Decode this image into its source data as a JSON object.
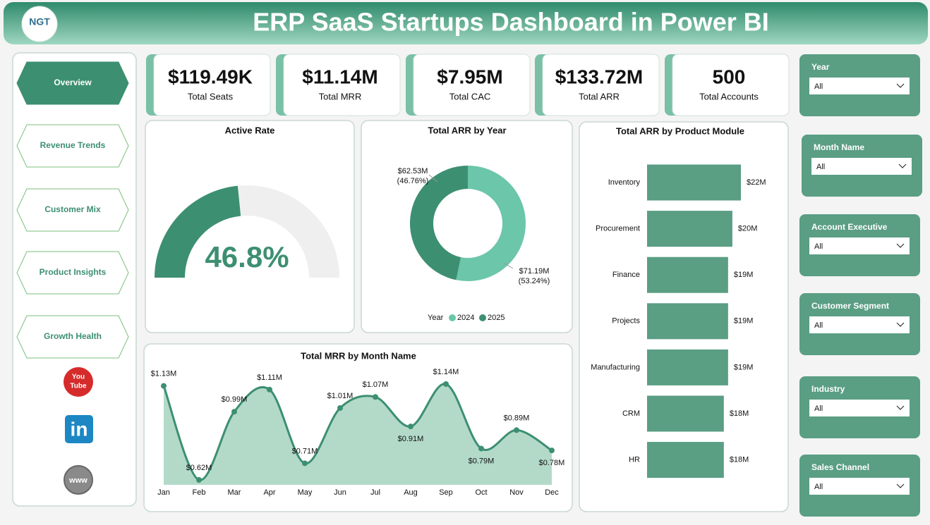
{
  "header": {
    "logo": "NGT",
    "title": "ERP SaaS Startups Dashboard in Power BI"
  },
  "nav": [
    "Overview",
    "Revenue Trends",
    "Customer Mix",
    "Product Insights",
    "Growth Health"
  ],
  "icons": {
    "youtube": [
      "You",
      "Tube"
    ],
    "linkedin": "in",
    "web": "www"
  },
  "kpis": [
    {
      "value": "$119.49K",
      "label": "Total Seats"
    },
    {
      "value": "$11.14M",
      "label": "Total MRR"
    },
    {
      "value": "$7.95M",
      "label": "Total CAC"
    },
    {
      "value": "$133.72M",
      "label": "Total ARR"
    },
    {
      "value": "500",
      "label": "Total Accounts"
    }
  ],
  "chart_data": [
    {
      "type": "gauge",
      "title": "Active Rate",
      "values": [
        46.8
      ],
      "value_labels": [
        "46.8%"
      ],
      "ylim": [
        0,
        100
      ],
      "color": "#3d8f72",
      "track_color": "#f0efef"
    },
    {
      "type": "donut",
      "title": "Total ARR by Year",
      "legend_title": "Year",
      "categories": [
        "2024",
        "2025"
      ],
      "values": [
        71.19,
        62.53
      ],
      "value_labels": [
        "$71.19M",
        "$62.53M"
      ],
      "percent_labels": [
        "(53.24%)",
        "(46.76%)"
      ],
      "colors": [
        "#6cc6a9",
        "#3d8f72"
      ]
    },
    {
      "type": "bar",
      "orientation": "horizontal",
      "title": "Total ARR by Product Module",
      "categories": [
        "Inventory",
        "Procurement",
        "Finance",
        "Projects",
        "Manufacturing",
        "CRM",
        "HR"
      ],
      "values": [
        22,
        20,
        19,
        19,
        19,
        18,
        18
      ],
      "value_labels": [
        "$22M",
        "$20M",
        "$19M",
        "$19M",
        "$19M",
        "$18M",
        "$18M"
      ],
      "color": "#5a9e84"
    },
    {
      "type": "line",
      "area": true,
      "title": "Total MRR by Month Name",
      "categories": [
        "Jan",
        "Feb",
        "Mar",
        "Apr",
        "May",
        "Jun",
        "Jul",
        "Aug",
        "Sep",
        "Oct",
        "Nov",
        "Dec"
      ],
      "values": [
        1.13,
        0.62,
        0.99,
        1.11,
        0.71,
        1.01,
        1.07,
        0.91,
        1.14,
        0.79,
        0.89,
        0.78
      ],
      "value_labels": [
        "$1.13M",
        "$0.62M",
        "$0.99M",
        "$1.11M",
        "$0.71M",
        "$1.01M",
        "$1.07M",
        "$0.91M",
        "$1.14M",
        "$0.79M",
        "$0.89M",
        "$0.78M"
      ],
      "color": "#3d8f72",
      "fill_color": "#b3dac9"
    }
  ],
  "slicers": [
    {
      "title": "Year",
      "value": "All"
    },
    {
      "title": "Month Name",
      "value": "All"
    },
    {
      "title": "Account Executive",
      "value": "All"
    },
    {
      "title": "Customer Segment",
      "value": "All"
    },
    {
      "title": "Industry",
      "value": "All"
    },
    {
      "title": "Sales Channel",
      "value": "All"
    }
  ]
}
